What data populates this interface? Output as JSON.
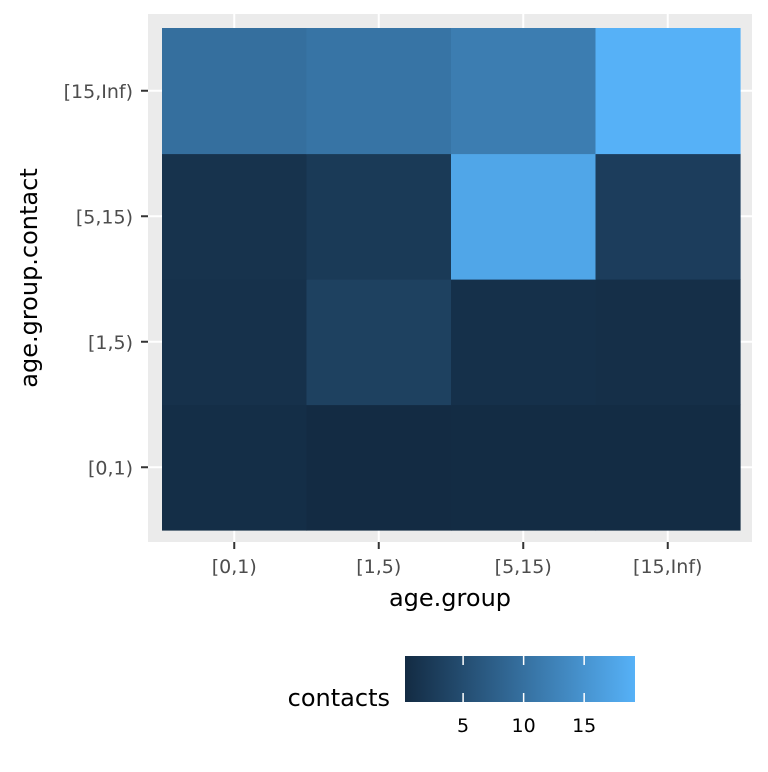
{
  "chart_data": {
    "type": "heatmap",
    "xlabel": "age.group",
    "ylabel": "age.group.contact",
    "x_categories": [
      "[0,1)",
      "[1,5)",
      "[5,15)",
      "[15,Inf)"
    ],
    "y_categories": [
      "[0,1)",
      "[1,5)",
      "[5,15)",
      "[15,Inf)"
    ],
    "values": [
      [
        0.6,
        0.2,
        0.3,
        0.3
      ],
      [
        1.0,
        3.3,
        0.9,
        0.7
      ],
      [
        1.3,
        2.3,
        17.6,
        2.8
      ],
      [
        9.8,
        10.5,
        11.8,
        19.2
      ]
    ],
    "legend": {
      "title": "contacts",
      "position": "bottom",
      "ticks": [
        5,
        10,
        15
      ],
      "range": [
        0.2,
        19.2
      ],
      "colors": [
        "#132B43",
        "#56B1F7"
      ]
    },
    "panel_background": "#EBEBEB",
    "grid": true
  }
}
